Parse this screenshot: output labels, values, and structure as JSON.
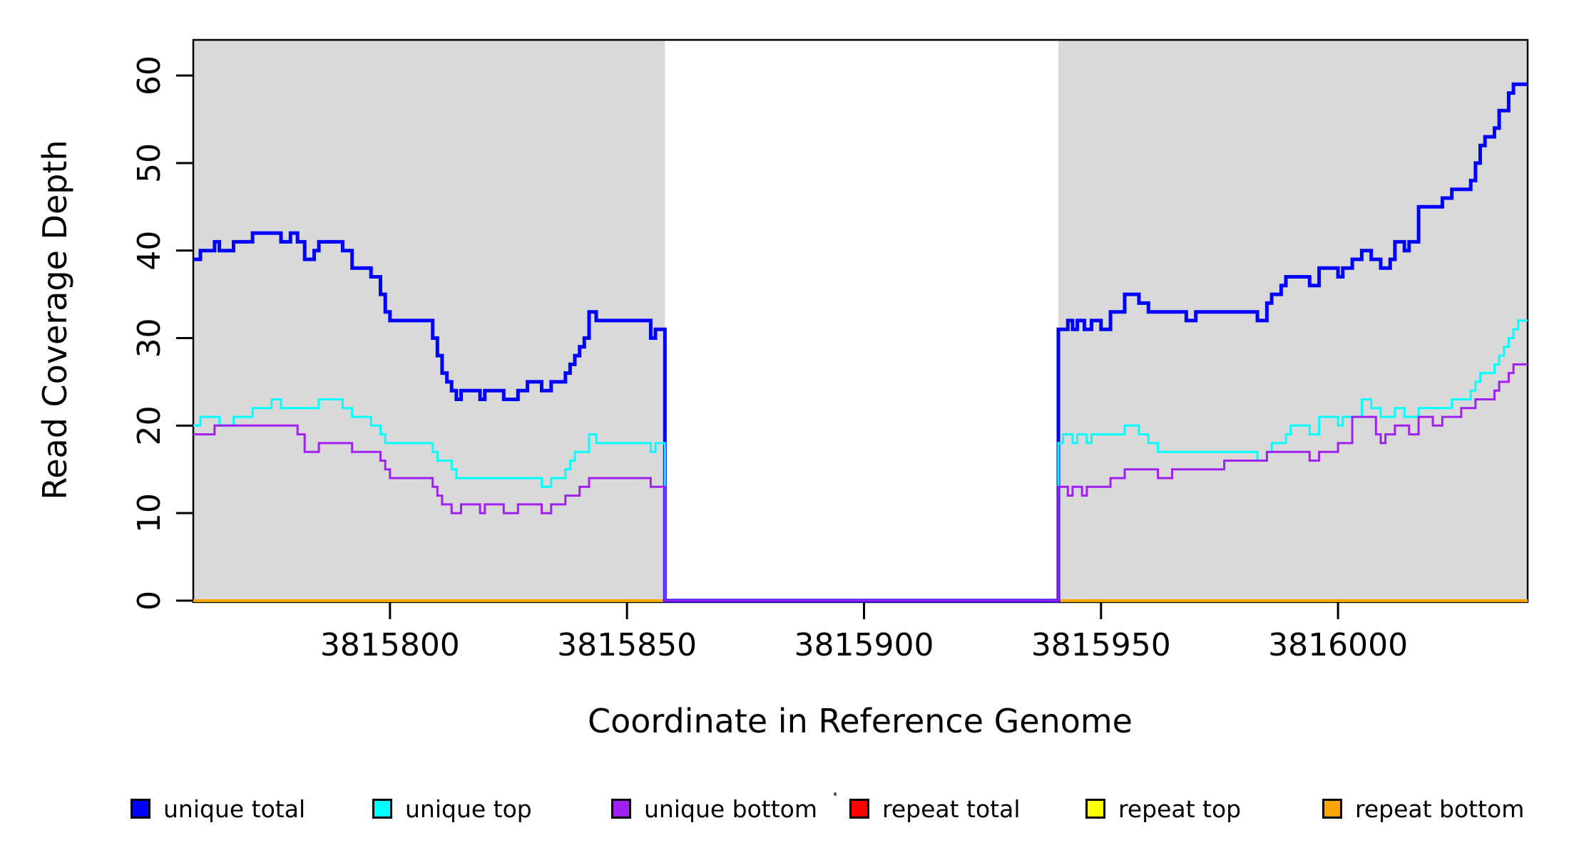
{
  "figure": {
    "y_axis": {
      "label": "Read Coverage Depth",
      "ticks": [
        "0",
        "10",
        "20",
        "30",
        "40",
        "50",
        "60"
      ]
    },
    "x_axis": {
      "label": "Coordinate in Reference Genome",
      "ticks": [
        "3815800",
        "3815850",
        "3815900",
        "3815950",
        "3816000"
      ]
    },
    "legend": {
      "items": [
        {
          "label": "unique total",
          "color": "#0000FF"
        },
        {
          "label": "unique top",
          "color": "#00FFFF"
        },
        {
          "label": "unique bottom",
          "color": "#A020F0"
        },
        {
          "label": "repeat total",
          "color": "#FF0000"
        },
        {
          "label": "repeat top",
          "color": "#FFFF00"
        },
        {
          "label": "repeat bottom",
          "color": "#FFA500"
        }
      ]
    },
    "colors": {
      "panel_background": "#D9D9D9",
      "plot_background": "#FFFFFF",
      "axis": "#000000"
    }
  },
  "chart_data": {
    "type": "line",
    "step": "after",
    "title": "",
    "xlabel": "Coordinate in Reference Genome",
    "ylabel": "Read Coverage Depth",
    "xlim": [
      3815758.5,
      3816040
    ],
    "ylim": [
      0,
      64
    ],
    "x_ticks": [
      3815800,
      3815850,
      3815900,
      3815950,
      3816000
    ],
    "y_ticks": [
      0,
      10,
      20,
      30,
      40,
      50,
      60
    ],
    "grid": false,
    "legend_position": "bottom",
    "shaded_unique_regions": [
      [
        3815758.5,
        3815858
      ],
      [
        3815941,
        3816040
      ]
    ],
    "zero_coverage_gap": [
      3815858,
      3815941
    ],
    "series": [
      {
        "name": "repeat total",
        "color": "#FF0000",
        "width": 4,
        "points": [
          [
            3815758.5,
            0
          ]
        ]
      },
      {
        "name": "repeat top",
        "color": "#FFFF00",
        "width": 4,
        "points": [
          [
            3815758.5,
            0
          ]
        ]
      },
      {
        "name": "repeat bottom",
        "color": "#FFA500",
        "width": 4,
        "points": [
          [
            3815758.5,
            0
          ]
        ]
      },
      {
        "name": "unique total",
        "color": "#0000FF",
        "width": 5,
        "points": [
          [
            3815758.5,
            39
          ],
          [
            3815760,
            40
          ],
          [
            3815763,
            41
          ],
          [
            3815764,
            40
          ],
          [
            3815767,
            41
          ],
          [
            3815771,
            42
          ],
          [
            3815777,
            41
          ],
          [
            3815779,
            42
          ],
          [
            3815780.5,
            41
          ],
          [
            3815782,
            39
          ],
          [
            3815784,
            40
          ],
          [
            3815785,
            41
          ],
          [
            3815790,
            40
          ],
          [
            3815792,
            38
          ],
          [
            3815796,
            37
          ],
          [
            3815798,
            35
          ],
          [
            3815799,
            33
          ],
          [
            3815800,
            32
          ],
          [
            3815809,
            30
          ],
          [
            3815810,
            28
          ],
          [
            3815811,
            26
          ],
          [
            3815812,
            25
          ],
          [
            3815813,
            24
          ],
          [
            3815814,
            23
          ],
          [
            3815815,
            24
          ],
          [
            3815819,
            23
          ],
          [
            3815820,
            24
          ],
          [
            3815824,
            23
          ],
          [
            3815827,
            24
          ],
          [
            3815829,
            25
          ],
          [
            3815832,
            24
          ],
          [
            3815834,
            25
          ],
          [
            3815837,
            26
          ],
          [
            3815838,
            27
          ],
          [
            3815839,
            28
          ],
          [
            3815840,
            29
          ],
          [
            3815841,
            30
          ],
          [
            3815842,
            33
          ],
          [
            3815843.5,
            32
          ],
          [
            3815855,
            30
          ],
          [
            3815856,
            31
          ],
          [
            3815858,
            0
          ],
          [
            3815941,
            31
          ],
          [
            3815943,
            32
          ],
          [
            3815944,
            31
          ],
          [
            3815945,
            32
          ],
          [
            3815946.5,
            31
          ],
          [
            3815948,
            32
          ],
          [
            3815950,
            31
          ],
          [
            3815952,
            33
          ],
          [
            3815955,
            35
          ],
          [
            3815958,
            34
          ],
          [
            3815960,
            33
          ],
          [
            3815968,
            32
          ],
          [
            3815970,
            33
          ],
          [
            3815983,
            32
          ],
          [
            3815985,
            34
          ],
          [
            3815986,
            35
          ],
          [
            3815988,
            36
          ],
          [
            3815989,
            37
          ],
          [
            3815994,
            36
          ],
          [
            3815996,
            38
          ],
          [
            3816000,
            37
          ],
          [
            3816001,
            38
          ],
          [
            3816003,
            39
          ],
          [
            3816005,
            40
          ],
          [
            3816007,
            39
          ],
          [
            3816009,
            38
          ],
          [
            3816011,
            39
          ],
          [
            3816012,
            41
          ],
          [
            3816014,
            40
          ],
          [
            3816015,
            41
          ],
          [
            3816017,
            45
          ],
          [
            3816022,
            46
          ],
          [
            3816024,
            47
          ],
          [
            3816028,
            48
          ],
          [
            3816029,
            50
          ],
          [
            3816030,
            52
          ],
          [
            3816031,
            53
          ],
          [
            3816033,
            54
          ],
          [
            3816034,
            56
          ],
          [
            3816036,
            58
          ],
          [
            3816037,
            59
          ]
        ]
      },
      {
        "name": "unique top",
        "color": "#00FFFF",
        "width": 3,
        "points": [
          [
            3815758.5,
            20
          ],
          [
            3815760,
            21
          ],
          [
            3815764,
            20
          ],
          [
            3815767,
            21
          ],
          [
            3815771,
            22
          ],
          [
            3815775,
            23
          ],
          [
            3815777,
            22
          ],
          [
            3815785,
            23
          ],
          [
            3815790,
            22
          ],
          [
            3815792,
            21
          ],
          [
            3815796,
            20
          ],
          [
            3815798,
            19
          ],
          [
            3815799,
            18
          ],
          [
            3815809,
            17
          ],
          [
            3815810,
            16
          ],
          [
            3815813,
            15
          ],
          [
            3815814,
            14
          ],
          [
            3815832,
            13
          ],
          [
            3815834,
            14
          ],
          [
            3815837,
            15
          ],
          [
            3815838,
            16
          ],
          [
            3815839,
            17
          ],
          [
            3815842,
            19
          ],
          [
            3815843.5,
            18
          ],
          [
            3815855,
            17
          ],
          [
            3815856,
            18
          ],
          [
            3815858,
            0
          ],
          [
            3815941,
            18
          ],
          [
            3815942,
            19
          ],
          [
            3815944,
            18
          ],
          [
            3815945,
            19
          ],
          [
            3815947,
            18
          ],
          [
            3815948,
            19
          ],
          [
            3815955,
            20
          ],
          [
            3815958,
            19
          ],
          [
            3815960,
            18
          ],
          [
            3815962,
            17
          ],
          [
            3815983,
            16
          ],
          [
            3815985,
            17
          ],
          [
            3815986,
            18
          ],
          [
            3815989,
            19
          ],
          [
            3815990,
            20
          ],
          [
            3815994,
            19
          ],
          [
            3815996,
            21
          ],
          [
            3816000,
            20
          ],
          [
            3816001,
            21
          ],
          [
            3816005,
            23
          ],
          [
            3816007,
            22
          ],
          [
            3816009,
            21
          ],
          [
            3816012,
            22
          ],
          [
            3816014,
            21
          ],
          [
            3816017,
            22
          ],
          [
            3816024,
            23
          ],
          [
            3816028,
            24
          ],
          [
            3816029,
            25
          ],
          [
            3816030,
            26
          ],
          [
            3816033,
            27
          ],
          [
            3816034,
            28
          ],
          [
            3816035,
            29
          ],
          [
            3816036,
            30
          ],
          [
            3816037,
            31
          ],
          [
            3816038,
            32
          ]
        ]
      },
      {
        "name": "unique bottom",
        "color": "#A020F0",
        "width": 3,
        "points": [
          [
            3815758.5,
            19
          ],
          [
            3815763,
            20
          ],
          [
            3815780.5,
            19
          ],
          [
            3815782,
            17
          ],
          [
            3815785,
            18
          ],
          [
            3815792,
            17
          ],
          [
            3815798,
            16
          ],
          [
            3815799,
            15
          ],
          [
            3815800,
            14
          ],
          [
            3815809,
            13
          ],
          [
            3815810,
            12
          ],
          [
            3815811,
            11
          ],
          [
            3815813,
            10
          ],
          [
            3815815,
            11
          ],
          [
            3815819,
            10
          ],
          [
            3815820,
            11
          ],
          [
            3815824,
            10
          ],
          [
            3815827,
            11
          ],
          [
            3815832,
            10
          ],
          [
            3815834,
            11
          ],
          [
            3815837,
            12
          ],
          [
            3815840,
            13
          ],
          [
            3815842,
            14
          ],
          [
            3815855,
            13
          ],
          [
            3815858,
            0
          ],
          [
            3815941,
            13
          ],
          [
            3815943,
            12
          ],
          [
            3815944,
            13
          ],
          [
            3815946,
            12
          ],
          [
            3815947,
            13
          ],
          [
            3815952,
            14
          ],
          [
            3815955,
            15
          ],
          [
            3815962,
            14
          ],
          [
            3815965,
            15
          ],
          [
            3815976,
            16
          ],
          [
            3815985,
            17
          ],
          [
            3815994,
            16
          ],
          [
            3815996,
            17
          ],
          [
            3816000,
            18
          ],
          [
            3816003,
            21
          ],
          [
            3816008,
            19
          ],
          [
            3816009,
            18
          ],
          [
            3816010,
            19
          ],
          [
            3816012,
            20
          ],
          [
            3816015,
            19
          ],
          [
            3816017,
            21
          ],
          [
            3816020,
            20
          ],
          [
            3816022,
            21
          ],
          [
            3816026,
            22
          ],
          [
            3816029,
            23
          ],
          [
            3816033,
            24
          ],
          [
            3816034,
            25
          ],
          [
            3816036,
            26
          ],
          [
            3816037,
            27
          ]
        ]
      }
    ]
  }
}
